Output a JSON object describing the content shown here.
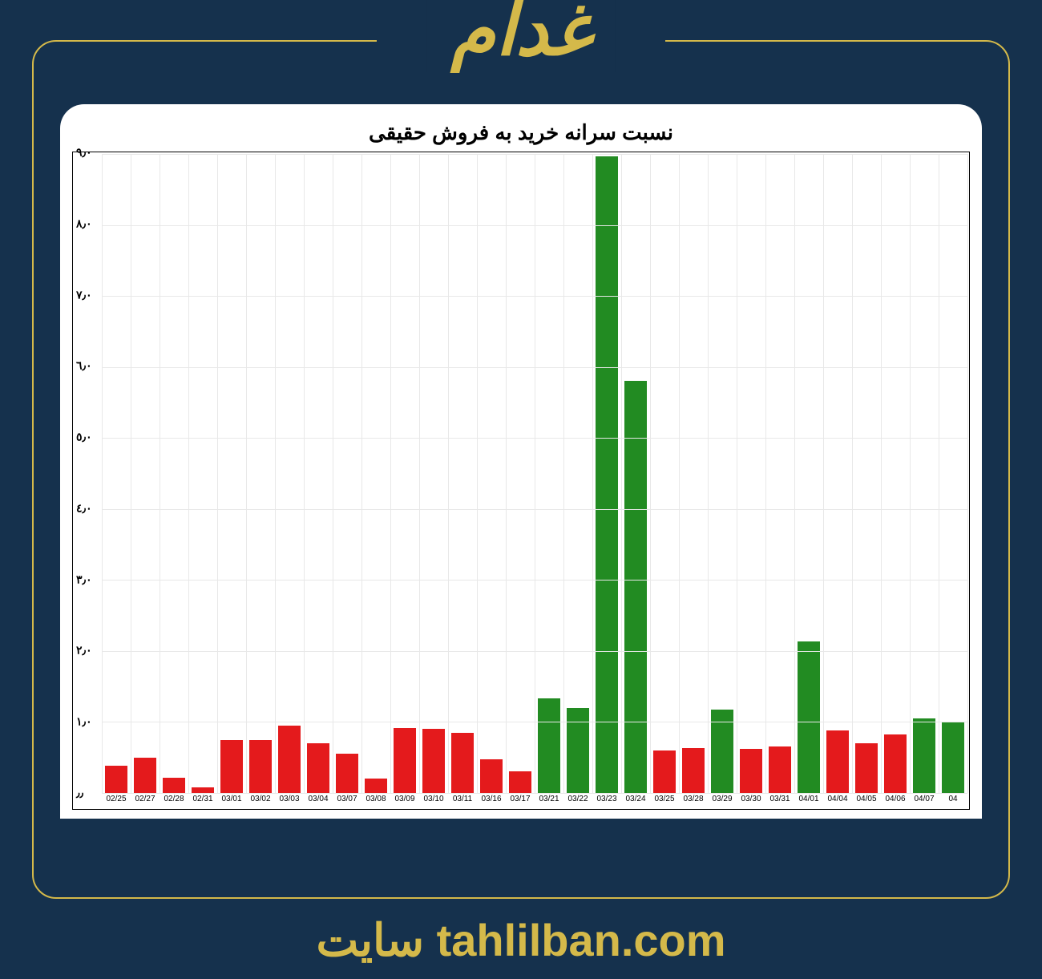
{
  "header": {
    "title": "غدام"
  },
  "chart": {
    "type": "bar",
    "title": "نسبت سرانه خرید به فروش حقیقی",
    "title_fontsize": 26,
    "background_color": "#ffffff",
    "grid_color": "#e8e8e8",
    "border_color": "#000000",
    "ylim": [
      0,
      9
    ],
    "ytick_step": 1,
    "ytick_labels": [
      "٫٫",
      "١٫٠",
      "٢٫٠",
      "٣٫٠",
      "٤٫٠",
      "٥٫٠",
      "٦٫٠",
      "٧٫٠",
      "٨٫٠",
      "٩٫٠"
    ],
    "bar_width": 0.78,
    "colors": {
      "up": "#228b22",
      "down": "#e41a1c"
    },
    "categories": [
      "02/25",
      "02/27",
      "02/28",
      "02/31",
      "03/01",
      "03/02",
      "03/03",
      "03/04",
      "03/07",
      "03/08",
      "03/09",
      "03/10",
      "03/11",
      "03/16",
      "03/17",
      "03/21",
      "03/22",
      "03/23",
      "03/24",
      "03/25",
      "03/28",
      "03/29",
      "03/30",
      "03/31",
      "04/01",
      "04/04",
      "04/05",
      "04/06",
      "04/07",
      "04"
    ],
    "values": [
      0.38,
      0.5,
      0.22,
      0.08,
      0.75,
      0.75,
      0.95,
      0.7,
      0.55,
      0.2,
      0.92,
      0.9,
      0.85,
      0.48,
      0.3,
      1.33,
      1.2,
      8.97,
      5.8,
      0.6,
      0.63,
      1.18,
      0.62,
      0.65,
      2.13,
      0.88,
      0.7,
      0.82,
      1.05,
      1.0
    ],
    "bar_colors": [
      "down",
      "down",
      "down",
      "down",
      "down",
      "down",
      "down",
      "down",
      "down",
      "down",
      "down",
      "down",
      "down",
      "down",
      "down",
      "up",
      "up",
      "up",
      "up",
      "down",
      "down",
      "up",
      "down",
      "down",
      "up",
      "down",
      "down",
      "down",
      "up",
      "up"
    ]
  },
  "footer": {
    "site_label": "سایت",
    "domain": "tahlilban.com"
  },
  "page": {
    "background_color": "#15314d",
    "accent_color": "#d4b94a"
  }
}
